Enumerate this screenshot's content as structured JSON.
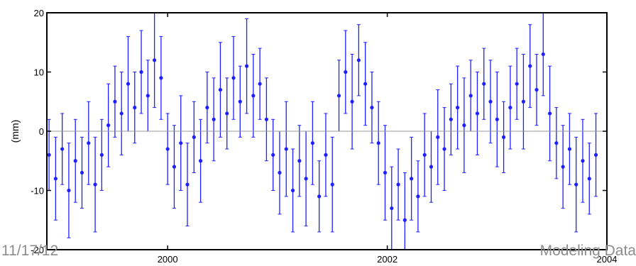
{
  "footer": {
    "date": "11/17/12",
    "title": "Modeling Data"
  },
  "colors": {
    "series": "#1f1fff",
    "zero_line": "#9a9a9a",
    "axis": "#000000"
  },
  "chart_data": {
    "type": "scatter",
    "title": "",
    "xlabel": "",
    "ylabel": "(mm)",
    "xlim": [
      1998.9,
      2004.0
    ],
    "ylim": [
      -20,
      20
    ],
    "xticks": [
      2000,
      2002,
      2004
    ],
    "yticks": [
      -20,
      -10,
      0,
      10,
      20
    ],
    "zero_line": true,
    "grid": false,
    "error_bars": true,
    "series": [
      {
        "x": [
          1998.92,
          1998.98,
          1999.04,
          1999.1,
          1999.16,
          1999.22,
          1999.28,
          1999.34,
          1999.4,
          1999.46,
          1999.52,
          1999.58,
          1999.64,
          1999.7,
          1999.76,
          1999.82,
          1999.88,
          1999.94,
          2000.0,
          2000.06,
          2000.12,
          2000.18,
          2000.24,
          2000.3,
          2000.36,
          2000.42,
          2000.48,
          2000.54,
          2000.6,
          2000.66,
          2000.72,
          2000.78,
          2000.84,
          2000.9,
          2000.96,
          2001.02,
          2001.08,
          2001.14,
          2001.2,
          2001.26,
          2001.32,
          2001.38,
          2001.44,
          2001.5,
          2001.56,
          2001.62,
          2001.68,
          2001.74,
          2001.8,
          2001.86,
          2001.92,
          2001.98,
          2002.04,
          2002.1,
          2002.16,
          2002.22,
          2002.28,
          2002.34,
          2002.4,
          2002.46,
          2002.52,
          2002.58,
          2002.64,
          2002.7,
          2002.76,
          2002.82,
          2002.88,
          2002.94,
          2003.0,
          2003.06,
          2003.12,
          2003.18,
          2003.24,
          2003.3,
          2003.36,
          2003.42,
          2003.48,
          2003.54,
          2003.6,
          2003.66,
          2003.72,
          2003.78,
          2003.84,
          2003.9
        ],
        "y": [
          -4,
          -8,
          -3,
          -10,
          -5,
          -7,
          -2,
          -9,
          -4,
          1,
          5,
          3,
          8,
          4,
          10,
          6,
          12,
          9,
          -3,
          -6,
          -2,
          -9,
          -1,
          -5,
          4,
          2,
          7,
          3,
          9,
          5,
          11,
          6,
          8,
          2,
          -4,
          -7,
          -3,
          -10,
          -5,
          -8,
          -2,
          -11,
          -4,
          -9,
          6,
          10,
          5,
          12,
          8,
          4,
          -2,
          -7,
          -13,
          -9,
          -15,
          -8,
          -11,
          -4,
          -6,
          -1,
          -3,
          2,
          4,
          1,
          6,
          3,
          8,
          5,
          2,
          -1,
          4,
          8,
          5,
          11,
          7,
          13,
          3,
          -2,
          -6,
          -3,
          -9,
          -5,
          -8,
          -4
        ],
        "err": [
          6,
          7,
          6,
          8,
          7,
          6,
          7,
          8,
          6,
          7,
          6,
          7,
          8,
          6,
          7,
          6,
          8,
          7,
          6,
          7,
          8,
          7,
          6,
          7,
          6,
          7,
          8,
          6,
          7,
          6,
          8,
          7,
          6,
          7,
          6,
          7,
          8,
          7,
          6,
          8,
          7,
          6,
          7,
          8,
          6,
          7,
          8,
          6,
          7,
          6,
          7,
          8,
          7,
          6,
          8,
          7,
          6,
          7,
          6,
          8,
          7,
          6,
          7,
          8,
          6,
          7,
          6,
          7,
          8,
          6,
          7,
          6,
          8,
          7,
          6,
          7,
          8,
          6,
          7,
          6,
          8,
          7,
          6,
          7
        ]
      }
    ]
  }
}
